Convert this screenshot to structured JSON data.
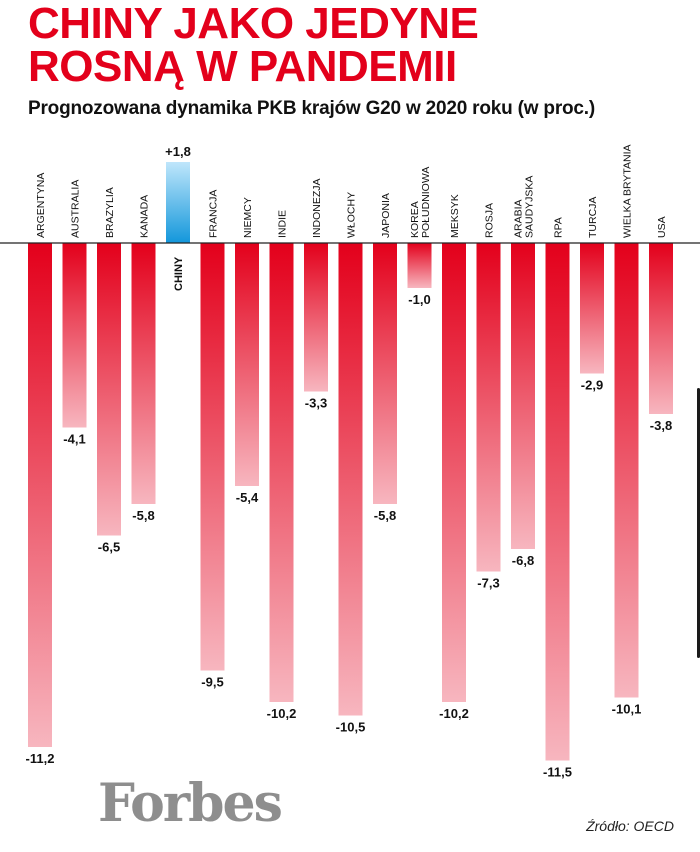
{
  "title_lines": [
    "CHINY JAKO JEDYNE",
    "ROSNĄ W PANDEMII"
  ],
  "subtitle": "Prognozowana dynamika PKB krajów G20 w 2020 roku (w proc.)",
  "source": "Źródło: OECD",
  "logo_text": "Forbes",
  "colors": {
    "title": "#e3001b",
    "negative_top": "#e3001b",
    "negative_bottom": "#f7b6bf",
    "positive_top": "#1397db",
    "positive_bottom": "#bfe6fb"
  },
  "chart_data": {
    "type": "bar",
    "categories": [
      "ARGENTYNA",
      "AUSTRALIA",
      "BRAZYLIA",
      "KANADA",
      "CHINY",
      "FRANCJA",
      "NIEMCY",
      "INDIE",
      "INDONEZJA",
      "WŁOCHY",
      "JAPONIA",
      "KOREA POŁUDNIOWA",
      "MEKSYK",
      "ROSJA",
      "ARABIA SAUDYJSKA",
      "RPA",
      "TURCJA",
      "WIELKA BRYTANIA",
      "USA"
    ],
    "values": [
      -11.2,
      -4.1,
      -6.5,
      -5.8,
      1.8,
      -9.5,
      -5.4,
      -10.2,
      -3.3,
      -10.5,
      -5.8,
      -1.0,
      -10.2,
      -7.3,
      -6.8,
      -11.5,
      -2.9,
      -10.1,
      -3.8
    ],
    "value_labels": [
      "-11,2",
      "-4,1",
      "-6,5",
      "-5,8",
      "+1,8",
      "-9,5",
      "-5,4",
      "-10,2",
      "-3,3",
      "-10,5",
      "-5,8",
      "-1,0",
      "-10,2",
      "-7,3",
      "-6,8",
      "-11,5",
      "-2,9",
      "-10,1",
      "-3,8"
    ],
    "label_lines": [
      [
        "ARGENTYNA"
      ],
      [
        "AUSTRALIA"
      ],
      [
        "BRAZYLIA"
      ],
      [
        "KANADA"
      ],
      [
        "CHINY"
      ],
      [
        "FRANCJA"
      ],
      [
        "NIEMCY"
      ],
      [
        "INDIE"
      ],
      [
        "INDONEZJA"
      ],
      [
        "WŁOCHY"
      ],
      [
        "JAPONIA"
      ],
      [
        "KOREA",
        "POŁUDNIOWA"
      ],
      [
        "MEKSYK"
      ],
      [
        "ROSJA"
      ],
      [
        "ARABIA",
        "SAUDYJSKA"
      ],
      [
        "RPA"
      ],
      [
        "TURCJA"
      ],
      [
        "WIELKA BRYTANIA"
      ],
      [
        "USA"
      ]
    ],
    "title": "CHINY JAKO JEDYNE ROSNĄ W PANDEMII",
    "subtitle": "Prognozowana dynamika PKB krajów G20 w 2020 roku (w proc.)",
    "xlabel": "",
    "ylabel": "",
    "ylim": [
      -11.5,
      1.8
    ],
    "grid": false,
    "legend": "none"
  }
}
